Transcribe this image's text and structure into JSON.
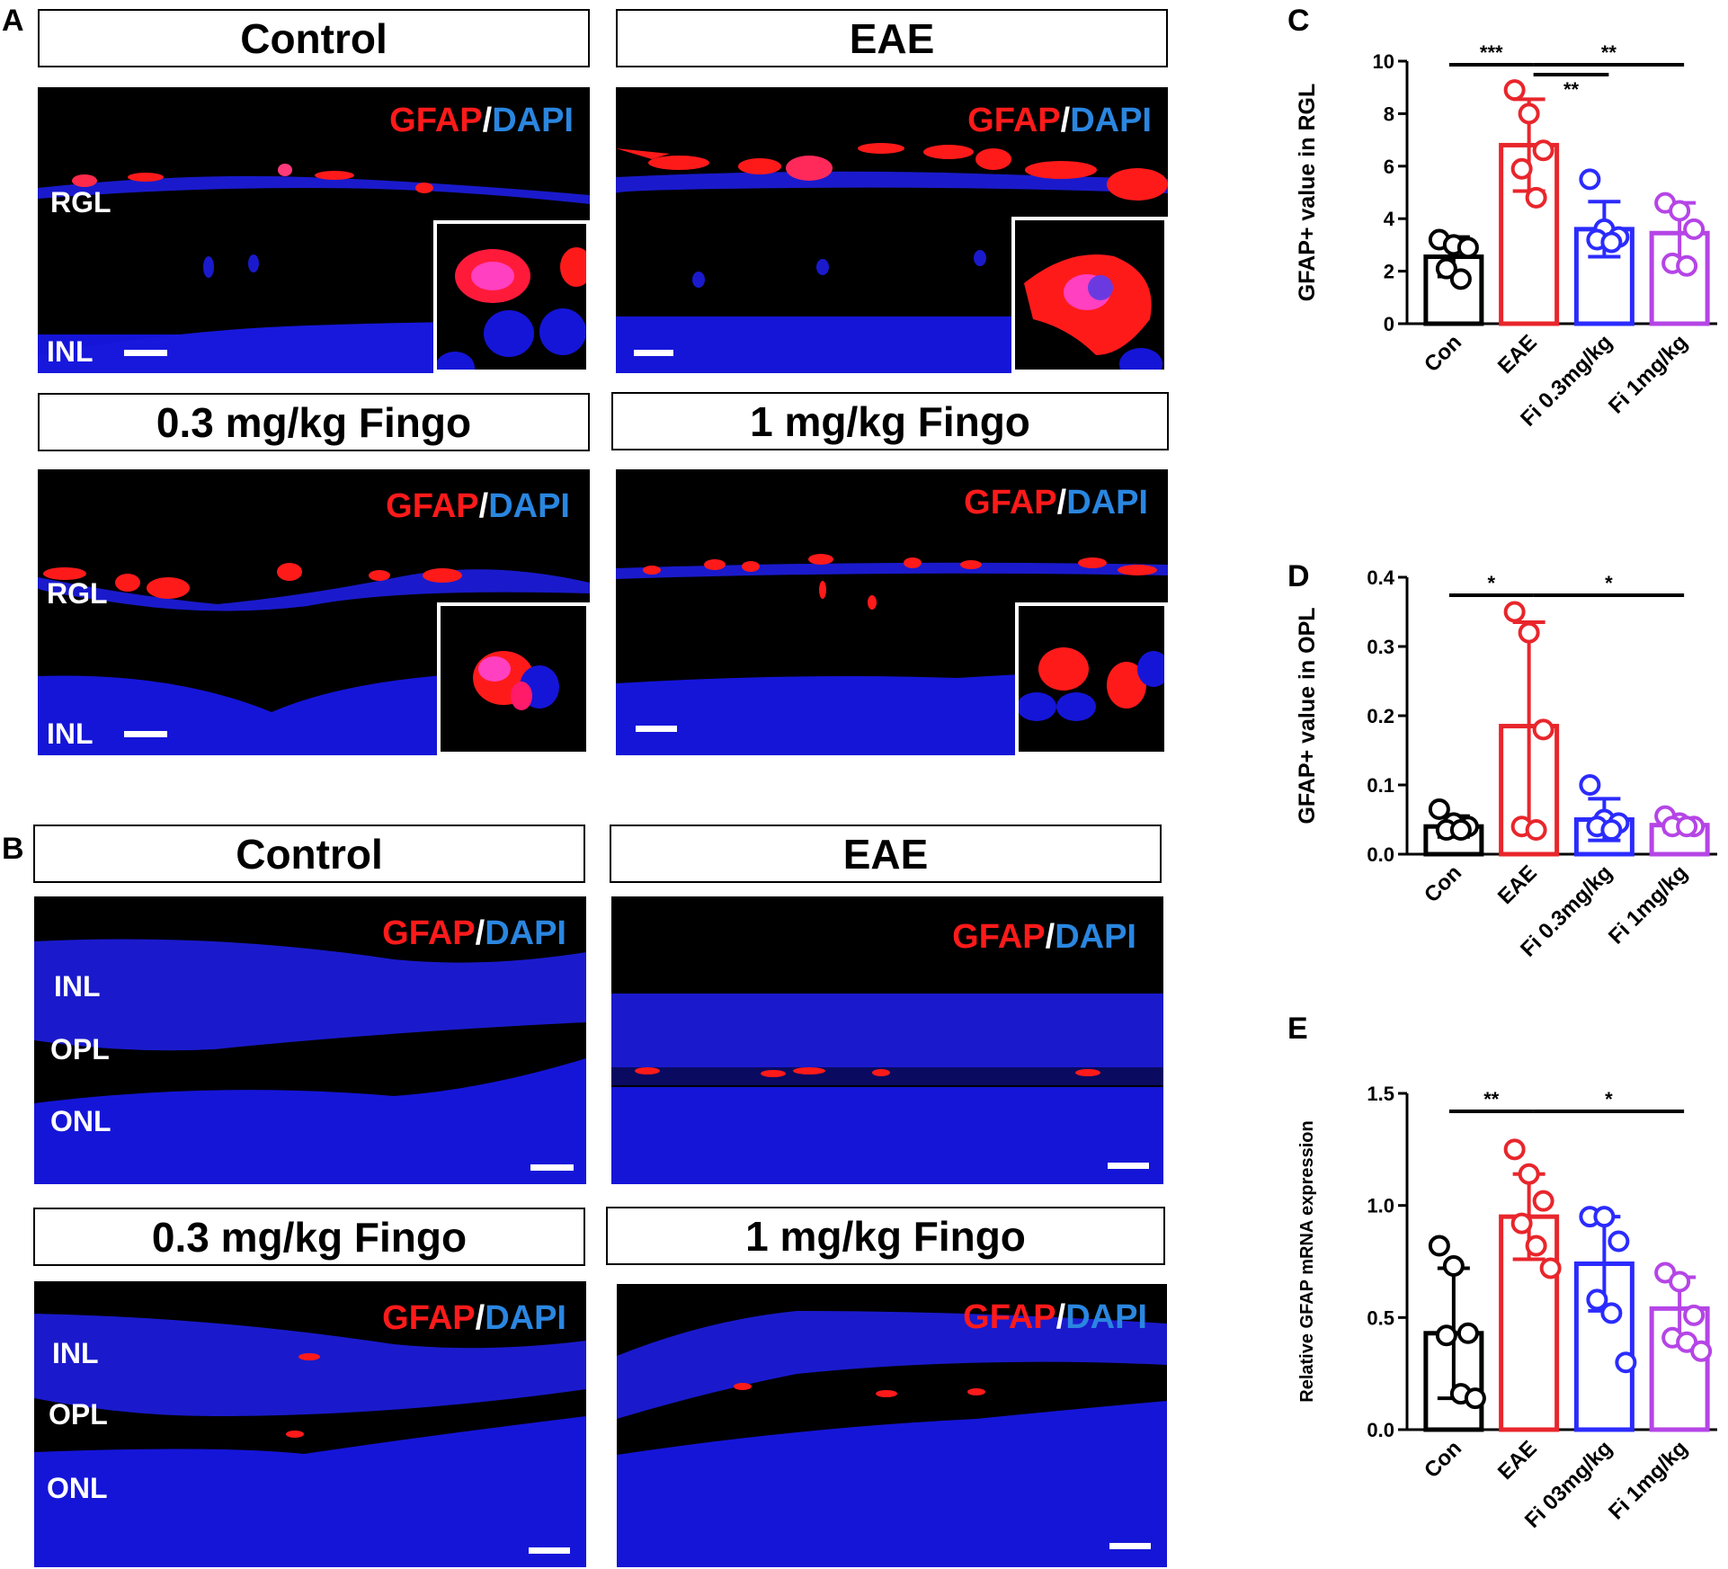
{
  "panel_labels": {
    "a": "A",
    "b": "B",
    "c": "C",
    "d": "D",
    "e": "E"
  },
  "panel_a": {
    "titles": [
      "Control",
      "EAE",
      "0.3 mg/kg Fingo",
      "1 mg/kg Fingo"
    ],
    "stain": {
      "gfap": "GFAP",
      "slash": "/",
      "dapi": "DAPI"
    },
    "layers": {
      "rgl": "RGL",
      "inl": "INL"
    }
  },
  "panel_b": {
    "titles": [
      "Control",
      "EAE",
      "0.3 mg/kg Fingo",
      "1 mg/kg Fingo"
    ],
    "stain": {
      "gfap": "GFAP",
      "slash": "/",
      "dapi": "DAPI"
    },
    "layers": {
      "inl": "INL",
      "opl": "OPL",
      "onl": "ONL"
    }
  },
  "colors": {
    "con": "#000000",
    "eae": "#e8262c",
    "fi03": "#2b2bff",
    "fi1": "#b545e6",
    "gfap": "#ff1a1a",
    "dapi": "#2a86e0",
    "nuclei": "#1515d8"
  },
  "chart_data": [
    {
      "id": "C",
      "type": "bar",
      "ylabel": "GFAP+ value in RGL",
      "categories": [
        "Con",
        "EAE",
        "Fi 0.3mg/kg",
        "Fi 1mg/kg"
      ],
      "values": [
        2.55,
        6.8,
        3.6,
        3.45
      ],
      "errors": [
        0.75,
        1.75,
        1.05,
        1.15
      ],
      "points": [
        [
          3.2,
          3.0,
          2.9,
          2.1,
          1.7
        ],
        [
          8.9,
          8.0,
          6.6,
          5.9,
          4.8
        ],
        [
          5.5,
          3.6,
          3.3,
          3.2,
          3.1
        ],
        [
          4.6,
          4.3,
          3.6,
          2.3,
          2.2
        ]
      ],
      "ylim": [
        0,
        10
      ],
      "yticks": [
        "0",
        "2",
        "4",
        "6",
        "8",
        "10"
      ],
      "significance": [
        {
          "from": 0,
          "to": 1,
          "label": "***"
        },
        {
          "from": 1,
          "to": 3,
          "label": "**"
        },
        {
          "from": 1,
          "to": 2,
          "label": "**"
        }
      ]
    },
    {
      "id": "D",
      "type": "bar",
      "ylabel": "GFAP+ value in OPL",
      "categories": [
        "Con",
        "EAE",
        "Fi 0.3mg/kg",
        "Fi 1mg/kg"
      ],
      "values": [
        0.04,
        0.185,
        0.05,
        0.042
      ],
      "errors": [
        0.015,
        0.15,
        0.03,
        0.01
      ],
      "points": [
        [
          0.065,
          0.045,
          0.04,
          0.035,
          0.035
        ],
        [
          0.35,
          0.32,
          0.18,
          0.04,
          0.035
        ],
        [
          0.1,
          0.05,
          0.045,
          0.04,
          0.035
        ],
        [
          0.055,
          0.045,
          0.04,
          0.04,
          0.04
        ]
      ],
      "ylim": [
        0,
        0.4
      ],
      "yticks": [
        "0.0",
        "0.1",
        "0.2",
        "0.3",
        "0.4"
      ],
      "significance": [
        {
          "from": 0,
          "to": 1,
          "label": "*"
        },
        {
          "from": 1,
          "to": 3,
          "label": "*"
        }
      ]
    },
    {
      "id": "E",
      "type": "bar",
      "ylabel": "Relative GFAP mRNA expression",
      "categories": [
        "Con",
        "EAE",
        "Fi 03mg/kg",
        "Fi 1mg/kg"
      ],
      "values": [
        0.43,
        0.95,
        0.74,
        0.54
      ],
      "errors": [
        0.29,
        0.19,
        0.21,
        0.14
      ],
      "points": [
        [
          0.82,
          0.73,
          0.43,
          0.42,
          0.16,
          0.14
        ],
        [
          1.25,
          1.14,
          1.02,
          0.92,
          0.82,
          0.72
        ],
        [
          0.95,
          0.95,
          0.84,
          0.58,
          0.52,
          0.3
        ],
        [
          0.7,
          0.66,
          0.51,
          0.41,
          0.39,
          0.35
        ]
      ],
      "ylim": [
        0,
        1.5
      ],
      "yticks": [
        "0.0",
        "0.5",
        "1.0",
        "1.5"
      ],
      "significance": [
        {
          "from": 0,
          "to": 1,
          "label": "**"
        },
        {
          "from": 1,
          "to": 3,
          "label": "*"
        }
      ]
    }
  ]
}
